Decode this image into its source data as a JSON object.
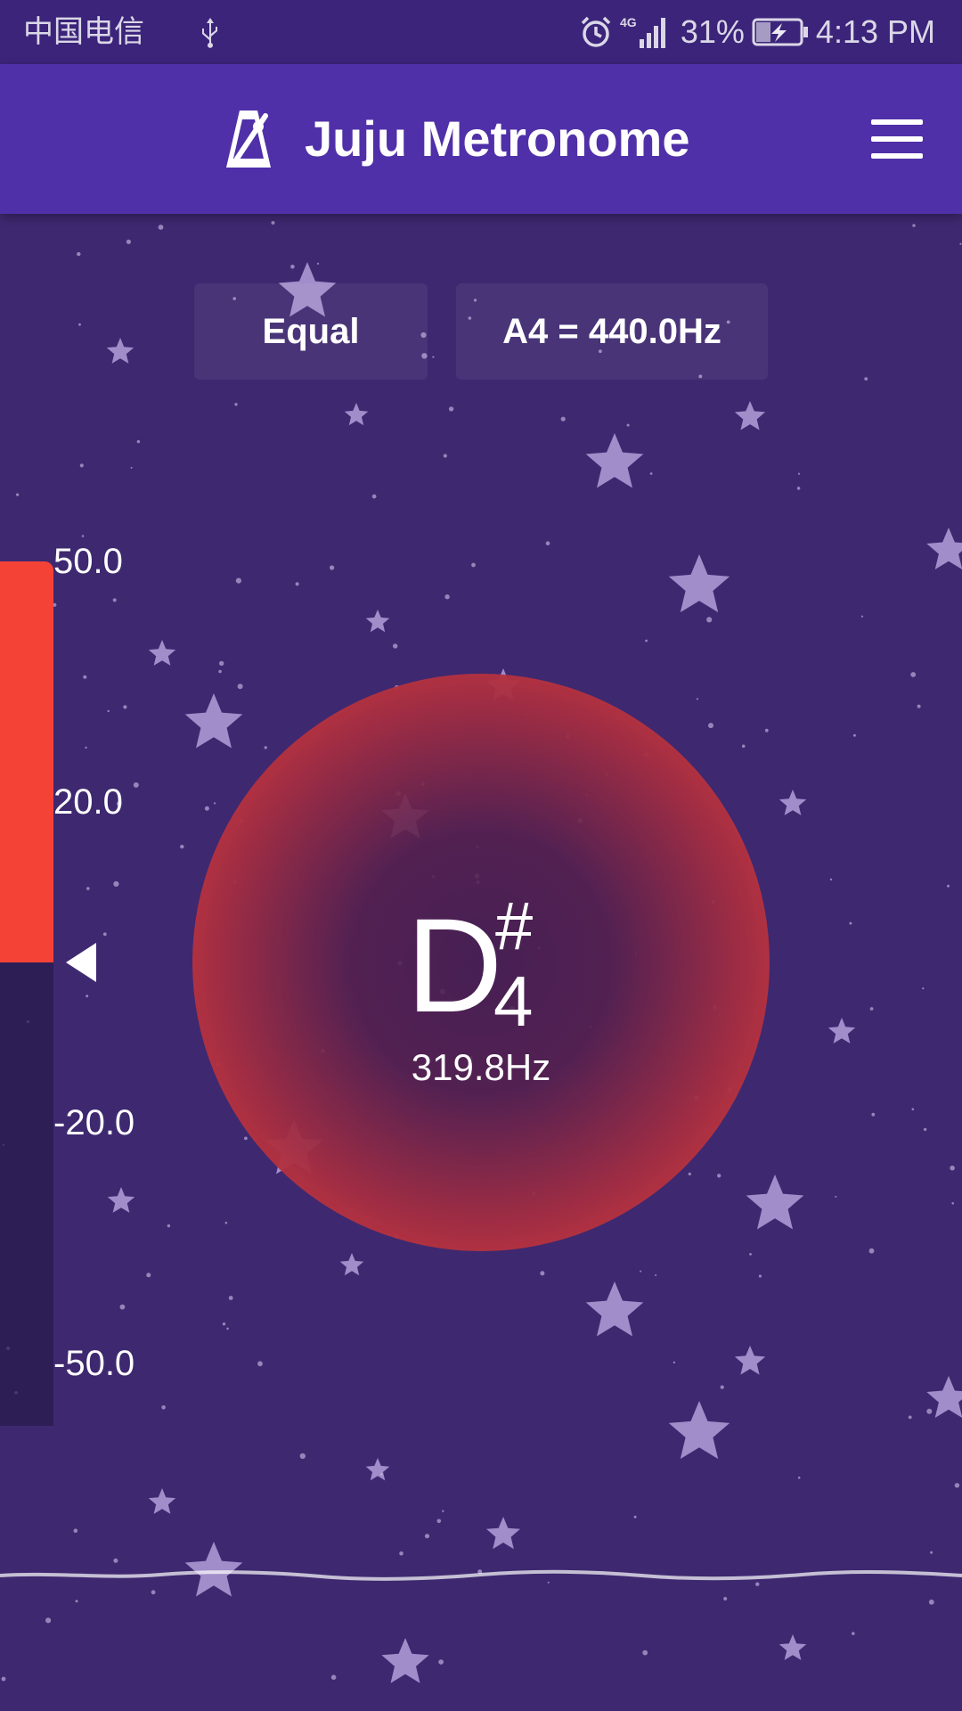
{
  "status_bar": {
    "carrier": "中国电信",
    "network": "4G",
    "battery": "31%",
    "time": "4:13 PM"
  },
  "app_bar": {
    "title": "Juju Metronome"
  },
  "tuner": {
    "temperament": "Equal",
    "reference_pitch": "A4 = 440.0Hz",
    "note": {
      "letter": "D",
      "accidental": "#",
      "octave": "4",
      "frequency": "319.8Hz"
    },
    "meter": {
      "scale_labels": [
        "50.0",
        "20.0",
        "-20.0",
        "-50.0"
      ],
      "cents_fill_top": 50.0,
      "cents_fill_bottom": 0.0,
      "fill_color": "#f44336"
    }
  },
  "colors": {
    "background": "#3e2870",
    "app_bar": "#5030a8",
    "status_bar": "#3b247a",
    "accent": "#f44336"
  }
}
